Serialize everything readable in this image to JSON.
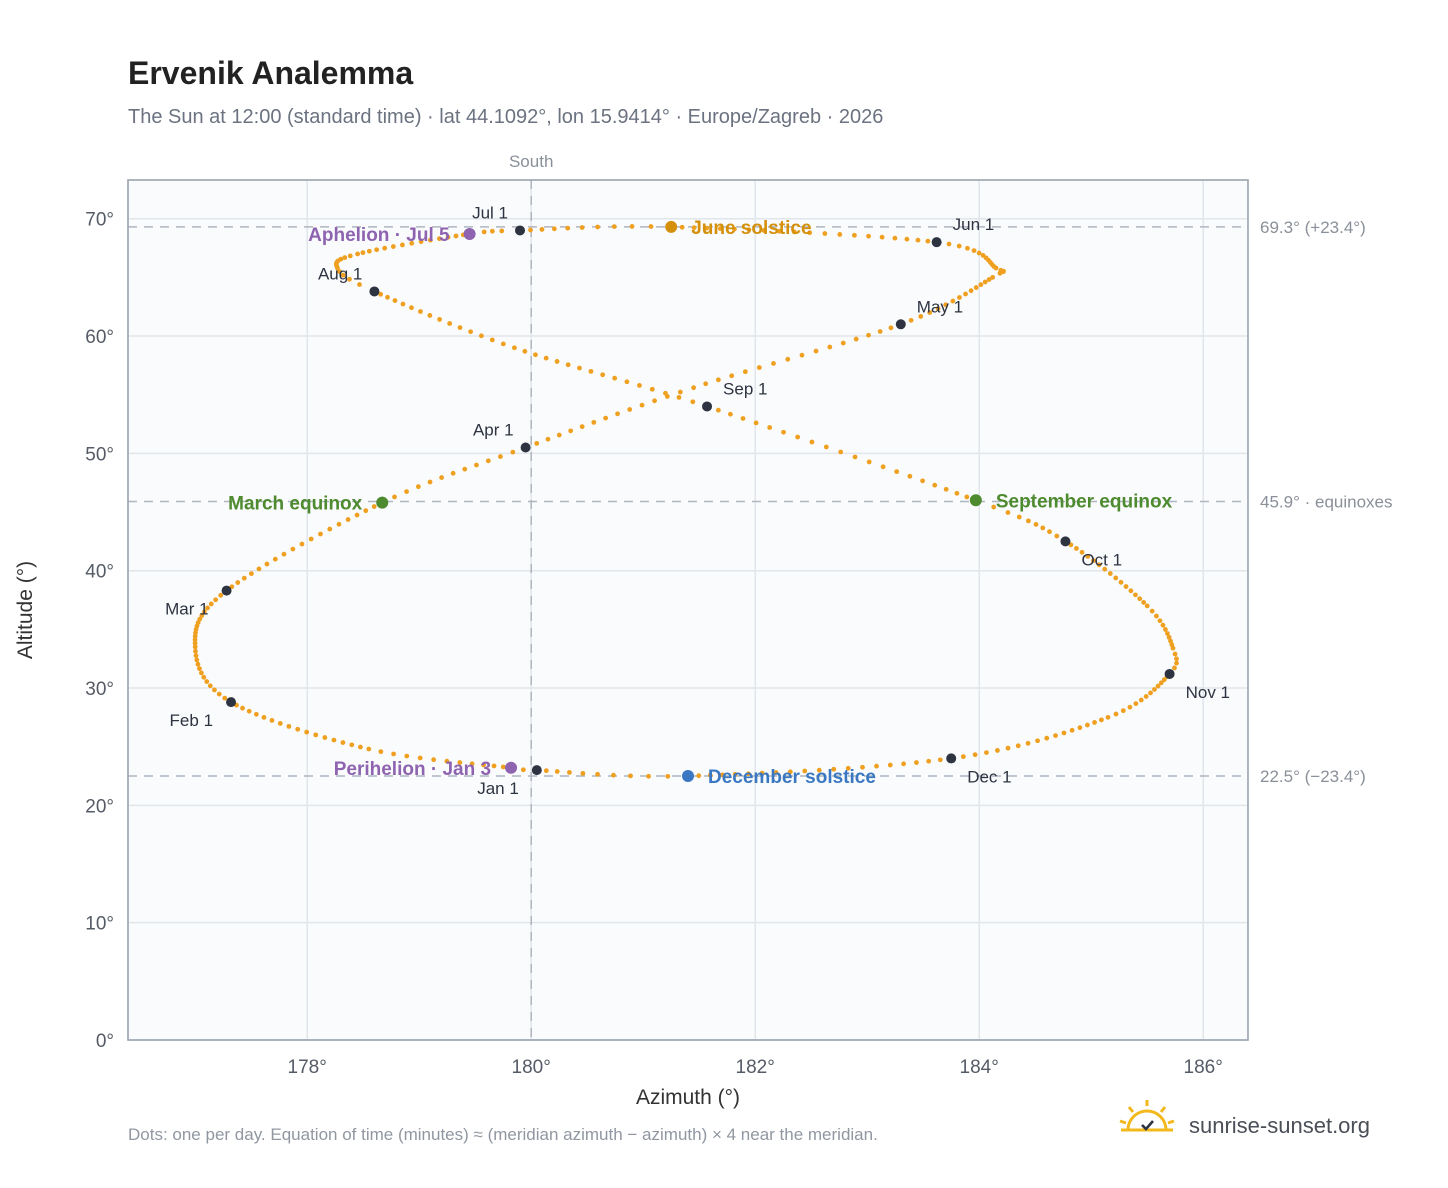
{
  "chart_data": {
    "type": "scatter",
    "title": "Ervenik Analemma",
    "subtitle": "The Sun at 12:00 (standard time) · lat 44.1092°, lon 15.9414° · Europe/Zagreb · 2026",
    "xlabel": "Azimuth (°)",
    "ylabel": "Altitude (°)",
    "xlim": [
      176.4,
      186.4
    ],
    "ylim": [
      0,
      73.3
    ],
    "x_ticks": [
      178,
      180,
      182,
      184,
      186
    ],
    "x_tick_labels": [
      "178°",
      "180°",
      "182°",
      "184°",
      "186°"
    ],
    "y_ticks": [
      0,
      10,
      20,
      30,
      40,
      50,
      60,
      70
    ],
    "y_tick_labels": [
      "0°",
      "10°",
      "20°",
      "30°",
      "40°",
      "50°",
      "60°",
      "70°"
    ],
    "grid": true,
    "meridian": {
      "azimuth": 180,
      "label": "South"
    },
    "reference_lines": [
      {
        "altitude": 69.3,
        "label": "69.3° (+23.4°)"
      },
      {
        "altitude": 45.9,
        "label": "45.9° · equinoxes"
      },
      {
        "altitude": 22.5,
        "label": "22.5° (−23.4°)"
      }
    ],
    "analemma_points": [
      {
        "day": 1,
        "azimuth": 180.05,
        "altitude": 23.0
      },
      {
        "day": 3,
        "azimuth": 179.82,
        "altitude": 23.2
      },
      {
        "day": 15,
        "azimuth": 178.55,
        "altitude": 24.8
      },
      {
        "day": 32,
        "azimuth": 177.32,
        "altitude": 28.8
      },
      {
        "day": 45,
        "azimuth": 177.0,
        "altitude": 33.5
      },
      {
        "day": 60,
        "azimuth": 177.28,
        "altitude": 38.3
      },
      {
        "day": 79,
        "azimuth": 178.67,
        "altitude": 45.8
      },
      {
        "day": 91,
        "azimuth": 179.95,
        "altitude": 50.5
      },
      {
        "day": 105,
        "azimuth": 181.45,
        "altitude": 55.6
      },
      {
        "day": 121,
        "azimuth": 183.3,
        "altitude": 61.0
      },
      {
        "day": 135,
        "azimuth": 184.12,
        "altitude": 65.0
      },
      {
        "day": 140,
        "azimuth": 184.15,
        "altitude": 65.8
      },
      {
        "day": 152,
        "azimuth": 183.62,
        "altitude": 68.0
      },
      {
        "day": 172,
        "azimuth": 181.25,
        "altitude": 69.3
      },
      {
        "day": 182,
        "azimuth": 179.9,
        "altitude": 69.0
      },
      {
        "day": 186,
        "azimuth": 179.45,
        "altitude": 68.7
      },
      {
        "day": 200,
        "azimuth": 178.45,
        "altitude": 67.0
      },
      {
        "day": 208,
        "azimuth": 178.27,
        "altitude": 65.8
      },
      {
        "day": 213,
        "azimuth": 178.6,
        "altitude": 63.8
      },
      {
        "day": 228,
        "azimuth": 179.85,
        "altitude": 59.0
      },
      {
        "day": 244,
        "azimuth": 181.57,
        "altitude": 54.0
      },
      {
        "day": 265,
        "azimuth": 183.97,
        "altitude": 46.0
      },
      {
        "day": 274,
        "azimuth": 184.77,
        "altitude": 42.5
      },
      {
        "day": 290,
        "azimuth": 185.5,
        "altitude": 37.0
      },
      {
        "day": 300,
        "azimuth": 185.73,
        "altitude": 33.4
      },
      {
        "day": 305,
        "azimuth": 185.7,
        "altitude": 31.2
      },
      {
        "day": 318,
        "azimuth": 185.15,
        "altitude": 27.5
      },
      {
        "day": 335,
        "azimuth": 183.75,
        "altitude": 24.0
      },
      {
        "day": 355,
        "azimuth": 181.4,
        "altitude": 22.5
      },
      {
        "day": 365,
        "azimuth": 180.05,
        "altitude": 23.0
      }
    ],
    "month_markers": [
      {
        "label": "Jan 1",
        "azimuth": 180.05,
        "altitude": 23.0,
        "anchor": "below-left"
      },
      {
        "label": "Feb 1",
        "azimuth": 177.32,
        "altitude": 28.8,
        "anchor": "below-left"
      },
      {
        "label": "Mar 1",
        "azimuth": 177.28,
        "altitude": 38.3,
        "anchor": "below-left"
      },
      {
        "label": "Apr 1",
        "azimuth": 179.95,
        "altitude": 50.5,
        "anchor": "above-left"
      },
      {
        "label": "May 1",
        "azimuth": 183.3,
        "altitude": 61.0,
        "anchor": "above-right"
      },
      {
        "label": "Jun 1",
        "azimuth": 183.62,
        "altitude": 68.0,
        "anchor": "above-right"
      },
      {
        "label": "Jul 1",
        "azimuth": 179.9,
        "altitude": 69.0,
        "anchor": "above-left"
      },
      {
        "label": "Aug 1",
        "azimuth": 178.6,
        "altitude": 63.8,
        "anchor": "above-left"
      },
      {
        "label": "Sep 1",
        "azimuth": 181.57,
        "altitude": 54.0,
        "anchor": "above-right"
      },
      {
        "label": "Oct 1",
        "azimuth": 184.77,
        "altitude": 42.5,
        "anchor": "below-right"
      },
      {
        "label": "Nov 1",
        "azimuth": 185.7,
        "altitude": 31.2,
        "anchor": "below-right"
      },
      {
        "label": "Dec 1",
        "azimuth": 183.75,
        "altitude": 24.0,
        "anchor": "below-right"
      }
    ],
    "events": [
      {
        "label": "June solstice",
        "azimuth": 181.25,
        "altitude": 69.3,
        "color": "#d4900a",
        "side": "right"
      },
      {
        "label": "Aphelion · Jul 5",
        "azimuth": 179.45,
        "altitude": 68.7,
        "color": "#8e63b0",
        "side": "left"
      },
      {
        "label": "March equinox",
        "azimuth": 178.67,
        "altitude": 45.8,
        "color": "#4e8a2e",
        "side": "left"
      },
      {
        "label": "September equinox",
        "azimuth": 183.97,
        "altitude": 46.0,
        "color": "#4e8a2e",
        "side": "right"
      },
      {
        "label": "Perihelion · Jan 3",
        "azimuth": 179.82,
        "altitude": 23.2,
        "color": "#8e63b0",
        "side": "left"
      },
      {
        "label": "December solstice",
        "azimuth": 181.4,
        "altitude": 22.5,
        "color": "#3a78c2",
        "side": "right"
      }
    ],
    "colors": {
      "analemma": "#f0a020",
      "month_marker": "#2d3340",
      "plot_bg": "#f9fbfd"
    }
  },
  "footnote": "Dots: one per day. Equation of time (minutes) ≈ (meridian azimuth − azimuth) × 4 near the meridian.",
  "brand": {
    "name": "sunrise-sunset.org",
    "icon": "sun-check-icon"
  }
}
